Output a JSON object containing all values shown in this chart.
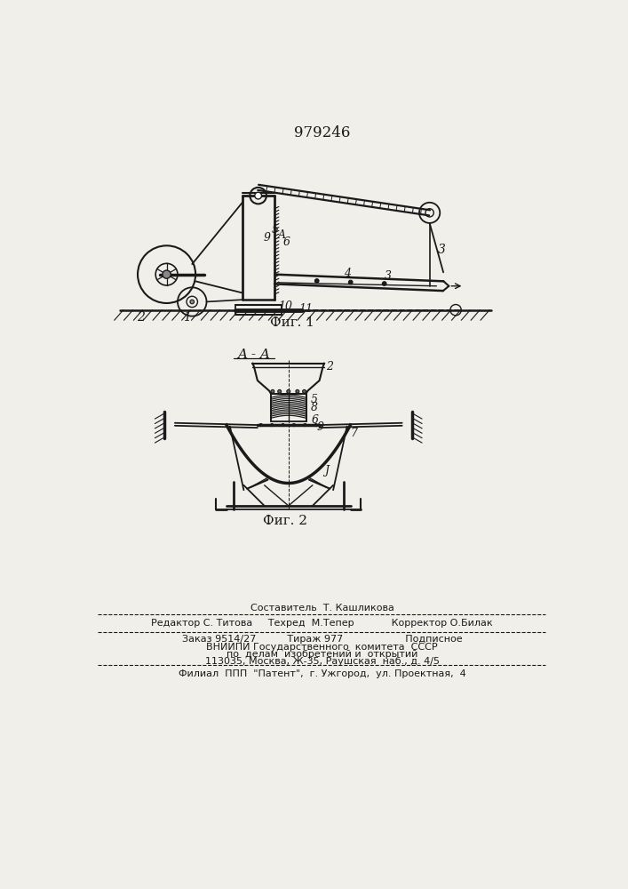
{
  "patent_number": "979246",
  "fig1_caption": "Фиг. 1",
  "fig2_caption": "Фиг. 2",
  "bg_color": "#f0efea",
  "line_color": "#1a1a1a",
  "footer_line0": "Составитель  Т. Кашликова",
  "footer_line1": "Редактор С. Титова     Техред  М.Тепер            Корректор О.Билак",
  "footer_line2": "Заказ 9514/27          Тираж 977                    Подписное",
  "footer_line3": "ВНИИПИ Государственного  комитета  СССР",
  "footer_line4": "по  делам  изобретений и  открытий",
  "footer_line5": "113035, Москва, Ж-35, Раушская  наб., д. 4/5",
  "footer_line6": "Филиал  ППП  \"Патент\",  г. Ужгород,  ул. Проектная,  4"
}
